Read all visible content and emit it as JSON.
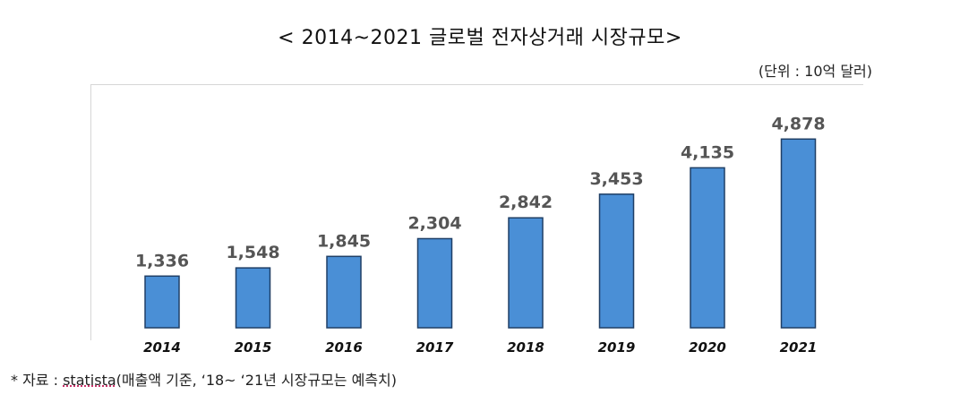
{
  "header": {
    "title": "< 2014~2021 글로벌 전자상거래 시장규모>",
    "unit": "(단위 : 10억 달러)"
  },
  "footer": {
    "note_prefix": "* 자료 : ",
    "note_source": "statista",
    "note_suffix": "(매출액 기준,  ‘18~ ‘21년 시장규모는 예측치)"
  },
  "chart_data": {
    "type": "bar",
    "categories": [
      "2014",
      "2015",
      "2016",
      "2017",
      "2018",
      "2019",
      "2020",
      "2021"
    ],
    "values": [
      1336,
      1548,
      1845,
      2304,
      2842,
      3453,
      4135,
      4878
    ],
    "value_labels": [
      "1,336",
      "1,548",
      "1,845",
      "2,304",
      "2,842",
      "3,453",
      "4,135",
      "4,878"
    ],
    "title": "< 2014~2021 글로벌 전자상거래 시장규모>",
    "xlabel": "",
    "ylabel": "",
    "ylim": [
      0,
      5200
    ],
    "grid": false,
    "bar_color": "#4a8fd6",
    "bar_border": "#1f3f66"
  }
}
